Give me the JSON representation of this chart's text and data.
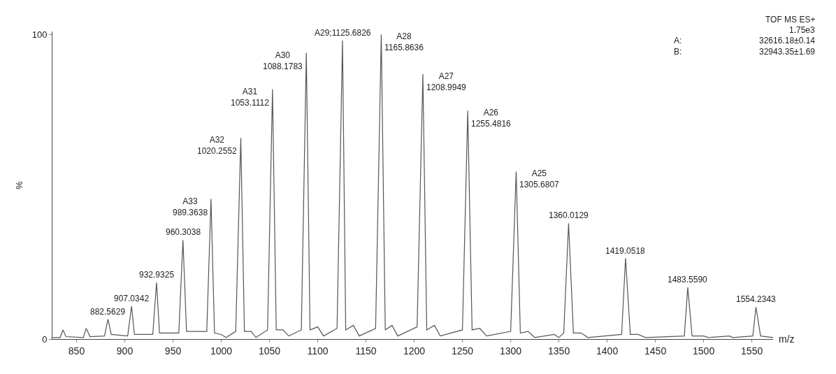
{
  "chart_data": {
    "type": "line",
    "xlabel": "m/z",
    "ylabel": "%",
    "x": [
      825,
      833,
      836,
      839,
      857,
      860,
      864,
      879,
      882.5629,
      886,
      903,
      907.0342,
      910,
      929,
      932.9325,
      936,
      956,
      960.3038,
      964,
      985,
      989.3638,
      993,
      1000,
      1005,
      1015,
      1020.2552,
      1024,
      1031,
      1036,
      1048,
      1053.1112,
      1057,
      1064,
      1070,
      1083,
      1088.1783,
      1092,
      1100,
      1106,
      1120,
      1125.6826,
      1129,
      1137,
      1143,
      1160,
      1165.8636,
      1170,
      1177,
      1183,
      1203,
      1208.9949,
      1213,
      1221,
      1227,
      1250,
      1255.4816,
      1260,
      1268,
      1275,
      1300,
      1305.6807,
      1310,
      1318,
      1325,
      1345,
      1350,
      1355,
      1360.0129,
      1365,
      1373,
      1380,
      1415,
      1419.0518,
      1424,
      1432,
      1440,
      1480,
      1483.559,
      1488,
      1500,
      1505,
      1527,
      1530,
      1551,
      1554.2343,
      1559,
      1572
    ],
    "series": [
      {
        "color": "#555555",
        "values": [
          0.5,
          0.5,
          3,
          0.8,
          0.5,
          3.5,
          0.8,
          1,
          6.5,
          1.5,
          1,
          10.8,
          1.5,
          1.5,
          18.5,
          2,
          2,
          32.5,
          2.5,
          2.5,
          46,
          2,
          1.5,
          0.5,
          2.5,
          66,
          2.5,
          2.5,
          0.5,
          3,
          82,
          3,
          3,
          1,
          3,
          94,
          3,
          4,
          1,
          3.5,
          98,
          3,
          4.5,
          1,
          3.5,
          100,
          3,
          4.5,
          1,
          4,
          87,
          3,
          4.5,
          1,
          3,
          75,
          3,
          3.5,
          1,
          2.5,
          55,
          2,
          2.5,
          0.5,
          1.5,
          0.5,
          2,
          38,
          2,
          2,
          0.5,
          1.5,
          26.5,
          1.5,
          1.5,
          0.5,
          1,
          17,
          1,
          1,
          0.5,
          1,
          0.5,
          1,
          10.5,
          1,
          0.5
        ]
      }
    ],
    "xlim": [
      825,
      1572
    ],
    "ylim": [
      0,
      101
    ],
    "xticks": [
      850,
      900,
      950,
      1000,
      1050,
      1100,
      1150,
      1200,
      1250,
      1300,
      1350,
      1400,
      1450,
      1500,
      1550
    ],
    "yticks": [
      0,
      100
    ],
    "marker": "none",
    "line_style": "solid",
    "annotations": [
      {
        "text": "882.5629",
        "x": 882.5629,
        "y": 6.5
      },
      {
        "text": "907.0342",
        "x": 907.0342,
        "y": 10.8
      },
      {
        "text": "932.9325",
        "x": 932.9325,
        "y": 18.5
      },
      {
        "text": "960.3038",
        "x": 960.3038,
        "y": 32.5
      },
      {
        "text": "A33\n989.3638",
        "x": 989.3638,
        "y": 46
      },
      {
        "text": "A32\n1020.2552",
        "x": 1020.2552,
        "y": 66
      },
      {
        "text": "A31\n1053.1112",
        "x": 1053.1112,
        "y": 82
      },
      {
        "text": "A30\n1088.1783",
        "x": 1088.1783,
        "y": 94
      },
      {
        "text": "A29;1125.6826",
        "x": 1125.6826,
        "y": 98
      },
      {
        "text": "A28\n1165.8636",
        "x": 1165.8636,
        "y": 100
      },
      {
        "text": "A27\n1208.9949",
        "x": 1208.9949,
        "y": 87
      },
      {
        "text": "A26\n1255.4816",
        "x": 1255.4816,
        "y": 75
      },
      {
        "text": "A25\n1305.6807",
        "x": 1305.6807,
        "y": 55
      },
      {
        "text": "1360.0129",
        "x": 1360.0129,
        "y": 38
      },
      {
        "text": "1419.0518",
        "x": 1419.0518,
        "y": 26.5
      },
      {
        "text": "1483.5590",
        "x": 1483.559,
        "y": 17
      },
      {
        "text": "1554.2343",
        "x": 1554.2343,
        "y": 10.5
      },
      "TOF MS ES+",
      "1.75e3",
      "A:",
      "32616.18±0.14",
      "B:",
      "32943.35±1.69"
    ]
  }
}
